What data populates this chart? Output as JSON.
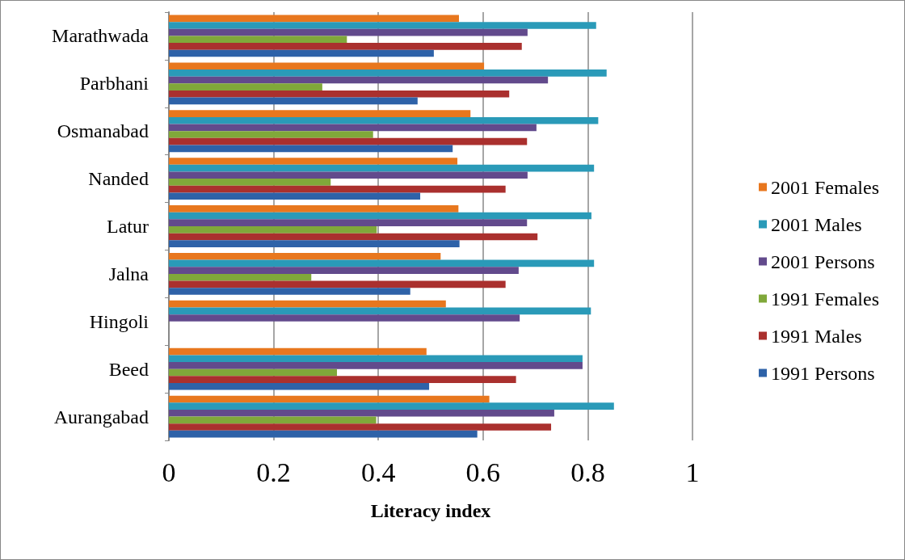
{
  "chart_data": {
    "type": "bar",
    "orientation": "horizontal",
    "xlabel": "Literacy index",
    "categories": [
      "Marathwada",
      "Parbhani",
      "Osmanabad",
      "Nanded",
      "Latur",
      "Jalna",
      "Hingoli",
      "Beed",
      "Aurangabad"
    ],
    "xlim": [
      0,
      1
    ],
    "xticks": [
      0,
      0.2,
      0.4,
      0.6,
      0.8,
      1
    ],
    "grid": "x",
    "legend": "right",
    "series": [
      {
        "name": "2001 Females",
        "color": "#e8771e",
        "values": [
          0.554,
          0.602,
          0.576,
          0.551,
          0.553,
          0.519,
          0.529,
          0.492,
          0.612
        ]
      },
      {
        "name": "2001 Males",
        "color": "#2a9ab8",
        "values": [
          0.816,
          0.836,
          0.82,
          0.812,
          0.807,
          0.812,
          0.806,
          0.79,
          0.85
        ]
      },
      {
        "name": "2001 Persons",
        "color": "#624a8c",
        "values": [
          0.685,
          0.724,
          0.702,
          0.685,
          0.684,
          0.668,
          0.67,
          0.79,
          0.736
        ]
      },
      {
        "name": "1991 Females",
        "color": "#80a83a",
        "values": [
          0.34,
          0.293,
          0.39,
          0.309,
          0.397,
          0.272,
          null,
          0.321,
          0.396
        ]
      },
      {
        "name": "1991 Males",
        "color": "#aa302e",
        "values": [
          0.674,
          0.65,
          0.684,
          0.643,
          0.704,
          0.643,
          null,
          0.663,
          0.73
        ]
      },
      {
        "name": "1991 Persons",
        "color": "#2e62a8",
        "values": [
          0.506,
          0.475,
          0.542,
          0.48,
          0.555,
          0.461,
          null,
          0.497,
          0.589
        ]
      }
    ]
  }
}
